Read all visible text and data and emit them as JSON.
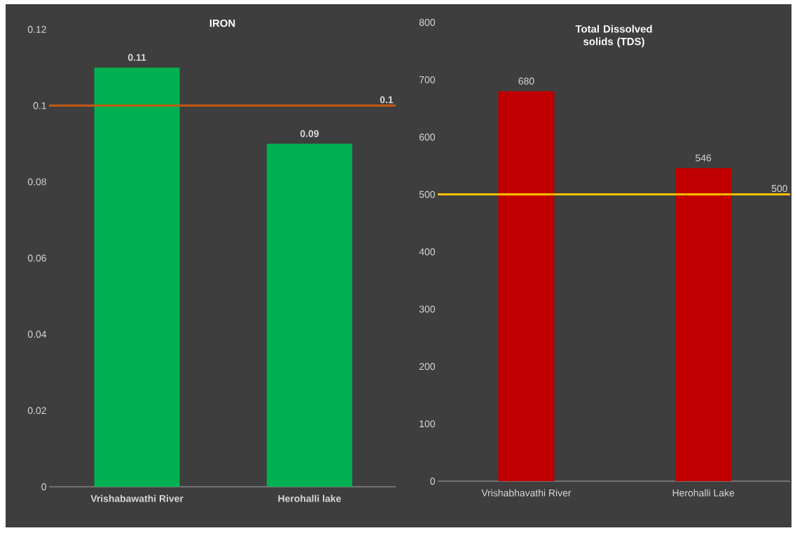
{
  "chart_data": [
    {
      "type": "bar",
      "title": "IRON",
      "categories": [
        "Vrishabawathi River",
        "Herohalli lake"
      ],
      "values": [
        0.11,
        0.09
      ],
      "color": "#00b050",
      "ylim": [
        0,
        0.12
      ],
      "yticks": [
        0,
        0.02,
        0.04,
        0.06,
        0.08,
        0.1,
        0.12
      ],
      "data_labels": true,
      "ref_lines": [
        {
          "axis": "y",
          "value": 0.1,
          "label": "0.1",
          "color": "#c55a11"
        }
      ]
    },
    {
      "type": "bar",
      "title": "Total Dissolved solids (TDS)",
      "categories": [
        "Vrishabhavathi River",
        "Herohalli Lake"
      ],
      "values": [
        680,
        546
      ],
      "color": "#c00000",
      "ylim": [
        0,
        800
      ],
      "yticks": [
        0,
        100,
        200,
        300,
        400,
        500,
        600,
        700,
        800
      ],
      "data_labels": true,
      "ref_lines": [
        {
          "axis": "y",
          "value": 500,
          "label": "500",
          "color": "#ffc000"
        }
      ]
    }
  ]
}
